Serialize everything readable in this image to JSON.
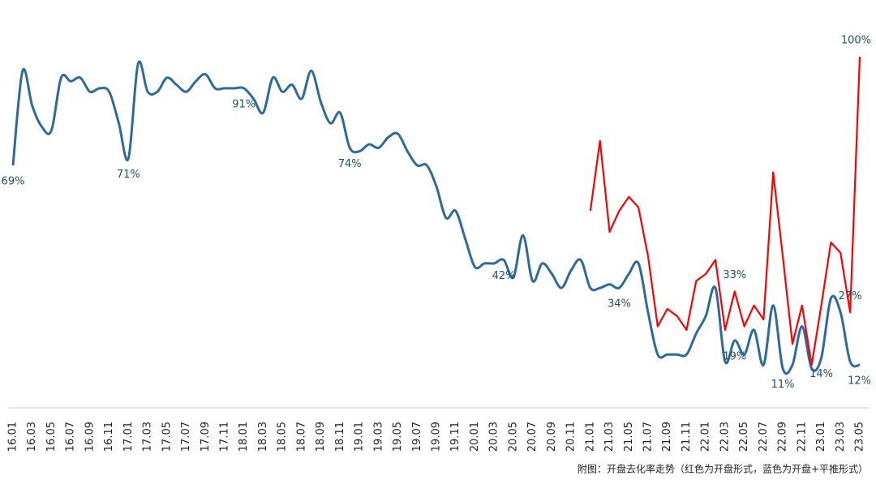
{
  "chart_data": {
    "type": "line",
    "categories": [
      "16.01",
      null,
      "16.03",
      null,
      "16.05",
      null,
      "16.07",
      null,
      "16.09",
      null,
      "16.11",
      null,
      "17.01",
      null,
      "17.03",
      null,
      "17.05",
      null,
      "17.07",
      null,
      "17.09",
      null,
      "17.11",
      null,
      "18.01",
      null,
      "18.03",
      null,
      "18.05",
      null,
      "18.07",
      null,
      "18.09",
      null,
      "18.11",
      null,
      "19.01",
      null,
      "19.03",
      null,
      "19.05",
      null,
      "19.07",
      null,
      "19.09",
      null,
      "19.11",
      null,
      "20.01",
      null,
      "20.03",
      null,
      "20.05",
      null,
      "20.07",
      null,
      "20.09",
      null,
      "20.11",
      null,
      "21.01",
      null,
      "21.03",
      null,
      "21.05",
      null,
      "21.07",
      null,
      "21.09",
      null,
      "21.11",
      null,
      "22.01",
      null,
      "22.03",
      null,
      "22.05",
      null,
      "22.07",
      null,
      "22.09",
      null,
      "22.11",
      null,
      "23.01",
      null,
      "23.03",
      null,
      "23.05"
    ],
    "series": [
      {
        "color": "#2e6a9a",
        "smooth": true,
        "values": [
          69,
          96,
          86,
          80,
          79,
          94,
          93,
          94,
          90,
          91,
          90,
          81,
          71,
          98,
          90,
          90,
          94,
          92,
          90,
          93,
          95,
          91,
          91,
          91,
          91,
          88,
          84,
          94,
          90,
          92,
          88,
          96,
          87,
          81,
          84,
          74,
          73,
          75,
          74,
          77,
          78,
          73,
          69,
          69,
          63,
          54,
          56,
          48,
          40,
          41,
          41,
          42,
          37,
          49,
          36,
          41,
          38,
          34,
          39,
          42,
          34,
          34,
          35,
          34,
          38,
          41,
          27,
          15,
          15,
          15,
          15,
          21,
          26,
          34,
          13,
          19,
          15,
          22,
          12,
          29,
          11,
          12,
          23,
          11,
          14,
          31,
          27,
          13,
          12
        ],
        "value_labels": [
          "69%",
          null,
          null,
          null,
          null,
          null,
          null,
          null,
          null,
          null,
          null,
          null,
          "71%",
          null,
          null,
          null,
          null,
          null,
          null,
          null,
          null,
          null,
          null,
          null,
          "91%",
          null,
          null,
          null,
          null,
          null,
          null,
          null,
          null,
          null,
          null,
          "74%",
          null,
          null,
          null,
          null,
          null,
          null,
          null,
          null,
          null,
          null,
          null,
          null,
          null,
          null,
          null,
          "42%",
          null,
          null,
          null,
          null,
          null,
          null,
          null,
          null,
          null,
          null,
          null,
          "34%",
          null,
          null,
          null,
          null,
          null,
          null,
          null,
          null,
          null,
          null,
          null,
          "19%",
          null,
          null,
          null,
          null,
          "11%",
          null,
          null,
          null,
          "14%",
          null,
          null,
          null,
          "12%"
        ]
      },
      {
        "color": "#ff0000",
        "smooth": false,
        "values": [
          null,
          null,
          null,
          null,
          null,
          null,
          null,
          null,
          null,
          null,
          null,
          null,
          null,
          null,
          null,
          null,
          null,
          null,
          null,
          null,
          null,
          null,
          null,
          null,
          null,
          null,
          null,
          null,
          null,
          null,
          null,
          null,
          null,
          null,
          null,
          null,
          null,
          null,
          null,
          null,
          null,
          null,
          null,
          null,
          null,
          null,
          null,
          null,
          null,
          null,
          null,
          null,
          null,
          null,
          null,
          null,
          null,
          null,
          null,
          null,
          56,
          76,
          50,
          56,
          60,
          57,
          43,
          23,
          28,
          26,
          22,
          36,
          38,
          42,
          22,
          33,
          23,
          29,
          25,
          67,
          43,
          18,
          29,
          12,
          29,
          47,
          44,
          27,
          100
        ],
        "value_labels": [
          null,
          null,
          null,
          null,
          null,
          null,
          null,
          null,
          null,
          null,
          null,
          null,
          null,
          null,
          null,
          null,
          null,
          null,
          null,
          null,
          null,
          null,
          null,
          null,
          null,
          null,
          null,
          null,
          null,
          null,
          null,
          null,
          null,
          null,
          null,
          null,
          null,
          null,
          null,
          null,
          null,
          null,
          null,
          null,
          null,
          null,
          null,
          null,
          null,
          null,
          null,
          null,
          null,
          null,
          null,
          null,
          null,
          null,
          null,
          null,
          null,
          null,
          null,
          null,
          null,
          null,
          null,
          null,
          null,
          null,
          null,
          null,
          null,
          null,
          null,
          "33%",
          null,
          null,
          null,
          null,
          null,
          null,
          null,
          null,
          null,
          null,
          null,
          "27%",
          "100%"
        ]
      }
    ],
    "ylim": [
      0,
      100
    ],
    "annotations": [
      "附图：开盘去化率走势（红色为开盘形式，蓝色为开盘+平推形式）"
    ]
  }
}
